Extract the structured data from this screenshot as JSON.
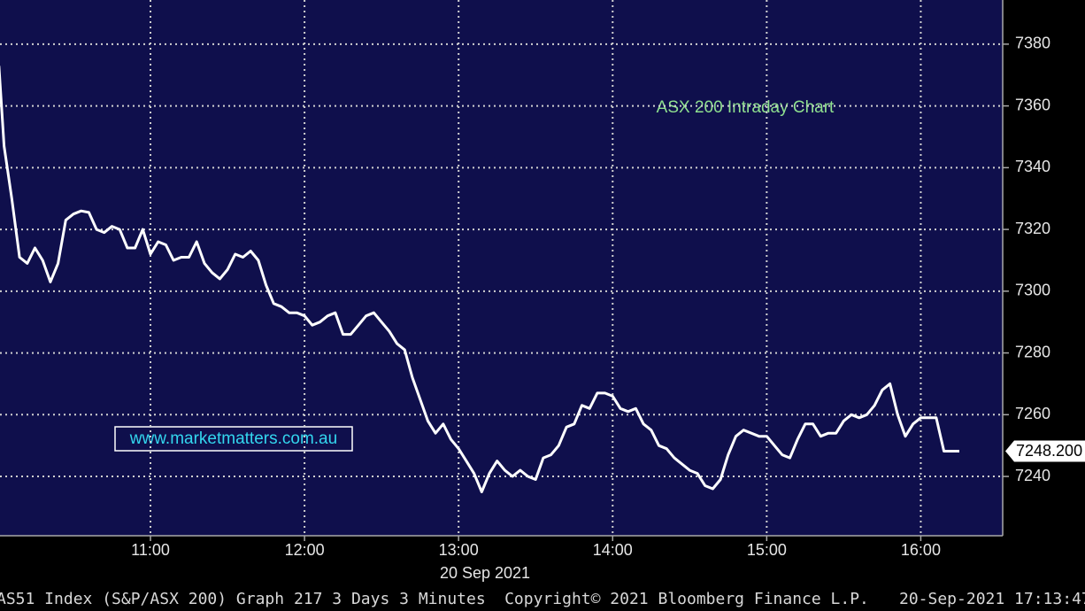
{
  "chart_data": {
    "type": "line",
    "annotations": [
      "ASX 200 Intraday Chart",
      "www.marketmatters.com.au"
    ],
    "x_label": "20 Sep 2021",
    "footer": [
      "AS51 Index (S&P/ASX 200) Graph 217 3 Days 3 Minutes",
      "Copyright© 2021 Bloomberg Finance L.P.",
      "20-Sep-2021 17:13:47"
    ],
    "x": [
      601,
      603,
      606,
      609,
      612,
      615,
      618,
      621,
      624,
      627,
      630,
      633,
      636,
      639,
      642,
      645,
      648,
      651,
      654,
      657,
      660,
      663,
      666,
      669,
      672,
      675,
      678,
      681,
      684,
      687,
      690,
      693,
      696,
      699,
      702,
      705,
      708,
      711,
      714,
      717,
      720,
      723,
      726,
      729,
      732,
      735,
      738,
      741,
      744,
      747,
      750,
      753,
      756,
      759,
      762,
      765,
      768,
      771,
      774,
      777,
      780,
      783,
      786,
      789,
      792,
      795,
      798,
      801,
      804,
      807,
      810,
      813,
      816,
      819,
      822,
      825,
      828,
      831,
      834,
      837,
      840,
      843,
      846,
      849,
      852,
      855,
      858,
      861,
      864,
      867,
      870,
      873,
      876,
      879,
      882,
      885,
      888,
      891,
      894,
      897,
      900,
      903,
      906,
      909,
      912,
      915,
      918,
      921,
      924,
      927,
      930,
      933,
      936,
      939,
      942,
      945,
      948,
      951,
      954,
      957,
      960,
      963,
      966,
      969,
      972,
      975
    ],
    "series": [
      {
        "name": "ASX 200",
        "color": "#ffffff",
        "values": [
          7373,
          7347,
          7330,
          7311,
          7309,
          7314,
          7310,
          7303,
          7309,
          7323,
          7325,
          7326,
          7325.5,
          7320,
          7319,
          7321,
          7320,
          7314,
          7314,
          7320,
          7312,
          7316,
          7315,
          7310,
          7311,
          7311,
          7316,
          7309,
          7306,
          7304,
          7307,
          7312,
          7311,
          7313,
          7310,
          7302,
          7296,
          7295,
          7293,
          7293,
          7292,
          7289,
          7290,
          7292,
          7293,
          7286,
          7286,
          7289,
          7292,
          7293,
          7290,
          7287,
          7283,
          7281,
          7272,
          7265,
          7258,
          7254,
          7257,
          7252,
          7249,
          7245,
          7241,
          7235,
          7241,
          7245,
          7242,
          7240,
          7242,
          7240,
          7239,
          7246,
          7247,
          7250,
          7256,
          7257,
          7263,
          7262,
          7267,
          7267,
          7266,
          7262,
          7261,
          7262,
          7257,
          7255,
          7250,
          7249,
          7246,
          7244,
          7242,
          7241,
          7237,
          7236,
          7239,
          7247,
          7253,
          7255,
          7254,
          7253,
          7253,
          7250,
          7247,
          7246,
          7252,
          7257,
          7257,
          7253,
          7254,
          7254,
          7258,
          7260,
          7259,
          7260,
          7263,
          7268,
          7270,
          7260,
          7253,
          7257,
          7259,
          7259,
          7259,
          7248.2,
          7248.2,
          7248.2
        ]
      }
    ],
    "last_price": {
      "value": 7248.2,
      "label": "7248.200"
    },
    "xlim": [
      601.4,
      991.9
    ],
    "xticks": [
      {
        "value": 660,
        "label": "11:00"
      },
      {
        "value": 720,
        "label": "12:00"
      },
      {
        "value": 780,
        "label": "13:00"
      },
      {
        "value": 840,
        "label": "14:00"
      },
      {
        "value": 900,
        "label": "15:00"
      },
      {
        "value": 960,
        "label": "16:00"
      }
    ],
    "ylim": [
      7220.8,
      7394.3
    ],
    "yticks": [
      7240,
      7260,
      7280,
      7300,
      7320,
      7340,
      7360,
      7380
    ],
    "grid": true
  }
}
